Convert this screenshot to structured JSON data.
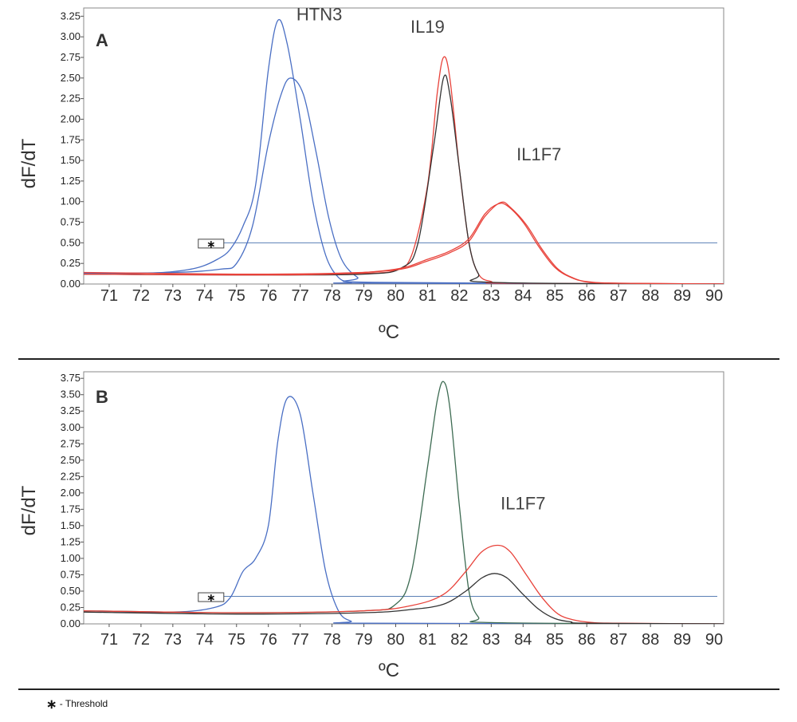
{
  "footnote": {
    "symbol": "∗",
    "text": "- Threshold"
  },
  "colors": {
    "blue": "#4a6fc4",
    "red": "#e8423a",
    "black": "#333333",
    "green": "#3d6b52",
    "threshold": "#5a7fb5",
    "frame": "#8a8a8a"
  },
  "chart_data": [
    {
      "panel_label": "A",
      "type": "line",
      "xlabel": "ºC",
      "ylabel": "dF/dT",
      "xlim": [
        70.2,
        90.3
      ],
      "ylim": [
        0,
        3.35
      ],
      "xticks": [
        71,
        72,
        73,
        74,
        75,
        76,
        77,
        78,
        79,
        80,
        81,
        82,
        83,
        84,
        85,
        86,
        87,
        88,
        89,
        90
      ],
      "yticks": [
        "0.00",
        "0.25",
        "0.50",
        "0.75",
        "1.00",
        "1.25",
        "1.50",
        "1.75",
        "2.00",
        "2.25",
        "2.50",
        "2.75",
        "3.00",
        "3.25"
      ],
      "threshold": 0.5,
      "threshold_marker": "∗",
      "annotations": [
        {
          "text": "HTN3",
          "x": 77.6,
          "y": 3.2
        },
        {
          "text": "IL19",
          "x": 81.0,
          "y": 3.05
        },
        {
          "text": "IL1F7",
          "x": 84.5,
          "y": 1.5
        }
      ],
      "series": [
        {
          "color": "blue",
          "x": [
            70.2,
            72,
            73,
            73.8,
            74.4,
            74.8,
            75.2,
            75.6,
            76.0,
            76.3,
            76.6,
            77.0,
            77.4,
            77.8,
            78.2,
            78.6,
            79,
            90.3
          ],
          "y": [
            0.12,
            0.13,
            0.15,
            0.2,
            0.3,
            0.42,
            0.7,
            1.2,
            2.6,
            3.2,
            2.9,
            2.0,
            1.0,
            0.35,
            0.08,
            0.02,
            0.01,
            0.0
          ]
        },
        {
          "color": "blue",
          "x": [
            70.2,
            73,
            74.5,
            75.0,
            75.5,
            76.0,
            76.4,
            76.7,
            77.1,
            77.5,
            77.9,
            78.3,
            78.8,
            79.3,
            90.3
          ],
          "y": [
            0.13,
            0.14,
            0.18,
            0.25,
            0.7,
            1.7,
            2.3,
            2.5,
            2.3,
            1.6,
            0.8,
            0.3,
            0.08,
            0.02,
            0.0
          ]
        },
        {
          "color": "red",
          "x": [
            70.2,
            75,
            79,
            80.0,
            80.5,
            81.0,
            81.3,
            81.5,
            81.7,
            82.0,
            82.3,
            82.6,
            83.0,
            83.5,
            90.3
          ],
          "y": [
            0.12,
            0.11,
            0.13,
            0.17,
            0.35,
            1.2,
            2.3,
            2.75,
            2.5,
            1.4,
            0.5,
            0.12,
            0.03,
            0.01,
            0.0
          ]
        },
        {
          "color": "black",
          "x": [
            70.2,
            75,
            79,
            80.2,
            80.7,
            81.2,
            81.5,
            81.7,
            82.0,
            82.3,
            82.6,
            83.0,
            90.3
          ],
          "y": [
            0.12,
            0.11,
            0.12,
            0.2,
            0.5,
            1.7,
            2.5,
            2.3,
            1.4,
            0.5,
            0.12,
            0.02,
            0.0
          ]
        },
        {
          "color": "red",
          "x": [
            70.2,
            75,
            78,
            80,
            81,
            81.7,
            82.3,
            82.8,
            83.2,
            83.5,
            84.0,
            84.5,
            85.0,
            85.5,
            86.0,
            87,
            90.3
          ],
          "y": [
            0.12,
            0.11,
            0.12,
            0.18,
            0.3,
            0.4,
            0.55,
            0.85,
            0.97,
            0.95,
            0.75,
            0.45,
            0.2,
            0.08,
            0.03,
            0.01,
            0.0
          ]
        },
        {
          "color": "red",
          "x": [
            70.2,
            75,
            78,
            80,
            81,
            81.7,
            82.3,
            82.8,
            83.3,
            83.6,
            84.1,
            84.6,
            85.1,
            85.6,
            86.1,
            87,
            90.3
          ],
          "y": [
            0.14,
            0.12,
            0.13,
            0.17,
            0.28,
            0.38,
            0.52,
            0.82,
            0.99,
            0.93,
            0.72,
            0.42,
            0.18,
            0.07,
            0.02,
            0.01,
            0.0
          ]
        }
      ]
    },
    {
      "panel_label": "B",
      "type": "line",
      "xlabel": "ºC",
      "ylabel": "dF/dT",
      "xlim": [
        70.2,
        90.3
      ],
      "ylim": [
        0,
        3.85
      ],
      "xticks": [
        71,
        72,
        73,
        74,
        75,
        76,
        77,
        78,
        79,
        80,
        81,
        82,
        83,
        84,
        85,
        86,
        87,
        88,
        89,
        90
      ],
      "yticks": [
        "0.00",
        "0.25",
        "0.50",
        "0.75",
        "1.00",
        "1.25",
        "1.50",
        "1.75",
        "2.00",
        "2.25",
        "2.50",
        "2.75",
        "3.00",
        "3.25",
        "3.50",
        "3.75"
      ],
      "threshold": 0.42,
      "threshold_marker": "∗",
      "annotations": [
        {
          "text": "IL1F7",
          "x": 84.0,
          "y": 1.75
        }
      ],
      "series": [
        {
          "color": "blue",
          "x": [
            70.2,
            73,
            74.3,
            74.8,
            75.2,
            75.6,
            76.0,
            76.3,
            76.6,
            77.0,
            77.4,
            77.8,
            78.2,
            78.6,
            79,
            90.3
          ],
          "y": [
            0.2,
            0.18,
            0.25,
            0.4,
            0.8,
            1.0,
            1.5,
            2.8,
            3.45,
            3.2,
            2.0,
            0.8,
            0.2,
            0.04,
            0.01,
            0.0
          ]
        },
        {
          "color": "green",
          "x": [
            70.2,
            75,
            79,
            80.0,
            80.5,
            81.0,
            81.3,
            81.5,
            81.7,
            82.0,
            82.3,
            82.6,
            83.0,
            90.3
          ],
          "y": [
            0.2,
            0.17,
            0.2,
            0.3,
            0.8,
            2.4,
            3.4,
            3.7,
            3.3,
            1.8,
            0.5,
            0.1,
            0.02,
            0.0
          ]
        },
        {
          "color": "red",
          "x": [
            70.2,
            75,
            79,
            80.5,
            81.5,
            82.2,
            82.7,
            83.2,
            83.6,
            84.1,
            84.6,
            85.1,
            85.6,
            86.2,
            87,
            90.3
          ],
          "y": [
            0.2,
            0.17,
            0.2,
            0.28,
            0.45,
            0.8,
            1.1,
            1.2,
            1.1,
            0.75,
            0.4,
            0.15,
            0.06,
            0.02,
            0.01,
            0.0
          ]
        },
        {
          "color": "black",
          "x": [
            70.2,
            75,
            79,
            80.5,
            81.5,
            82.2,
            82.7,
            83.1,
            83.5,
            84.0,
            84.5,
            85.0,
            85.5,
            86.0,
            90.3
          ],
          "y": [
            0.18,
            0.15,
            0.17,
            0.22,
            0.3,
            0.5,
            0.7,
            0.77,
            0.7,
            0.45,
            0.22,
            0.08,
            0.03,
            0.01,
            0.0
          ]
        }
      ]
    }
  ]
}
